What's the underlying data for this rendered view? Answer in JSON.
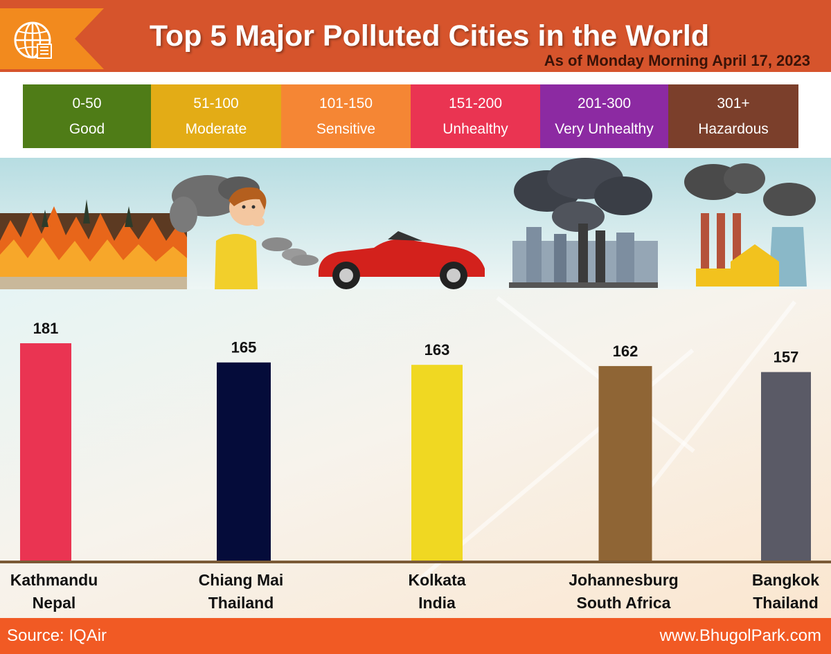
{
  "header": {
    "title": "Top 5 Major Polluted Cities in the World",
    "subtitle": "As of Monday Morning April 17, 2023"
  },
  "legend": [
    {
      "range": "0-50",
      "label": "Good",
      "color": "#4f7c17"
    },
    {
      "range": "51-100",
      "label": "Moderate",
      "color": "#e3ac16"
    },
    {
      "range": "101-150",
      "label": "Sensitive",
      "color": "#f58634"
    },
    {
      "range": "151-200",
      "label": "Unhealthy",
      "color": "#ea3452"
    },
    {
      "range": "201-300",
      "label": "Very Unhealthy",
      "color": "#8c2aa2"
    },
    {
      "range": "301+",
      "label": "Hazardous",
      "color": "#7b3f2b"
    }
  ],
  "chart_data": {
    "type": "bar",
    "categories": [
      {
        "city": "Kathmandu",
        "country": "Nepal"
      },
      {
        "city": "Chiang Mai",
        "country": "Thailand"
      },
      {
        "city": "Kolkata",
        "country": "India"
      },
      {
        "city": "Johannesburg",
        "country": "South Africa"
      },
      {
        "city": "Bangkok",
        "country": "Thailand"
      }
    ],
    "values": [
      181,
      165,
      163,
      162,
      157
    ],
    "colors": [
      "#ea3452",
      "#050c3a",
      "#f0d822",
      "#8f6535",
      "#5a5a66"
    ],
    "value_labels": [
      "181",
      "165",
      "163",
      "162",
      "157"
    ]
  },
  "footer": {
    "source": "Source: IQAir",
    "website": "www.BhugolPark.com"
  },
  "icons": [
    "globe-logo-icon",
    "forest-fire-icon",
    "coughing-boy-icon",
    "car-exhaust-icon",
    "city-smoke-icon",
    "factory-smoke-icon"
  ]
}
